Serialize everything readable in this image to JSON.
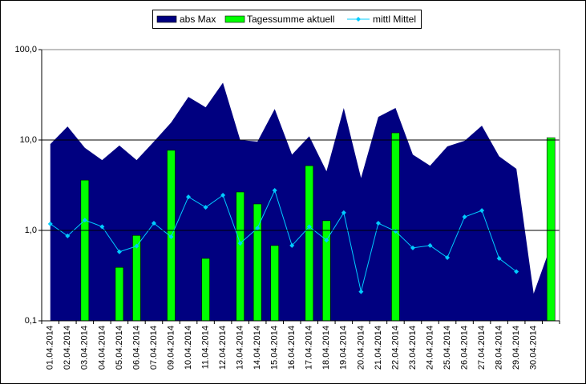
{
  "chart_data": {
    "type": "combo",
    "log_scale": true,
    "grid": true,
    "legend": "top",
    "categories": [
      "01.04.2014",
      "02.04.2014",
      "03.04.2014",
      "04.04.2014",
      "05.04.2014",
      "06.04.2014",
      "07.04.2014",
      "09.04.2014",
      "10.04.2014",
      "11.04.2014",
      "12.04.2014",
      "13.04.2014",
      "14.04.2014",
      "15.04.2014",
      "16.04.2014",
      "17.04.2014",
      "18.04.2014",
      "19.04.2014",
      "20.04.2014",
      "21.04.2014",
      "22.04.2014",
      "23.04.2014",
      "24.04.2014",
      "25.04.2014",
      "26.04.2014",
      "27.04.2014",
      "28.04.2014",
      "29.04.2014",
      "30.04.2014",
      null
    ],
    "series": [
      {
        "name": "abs Max",
        "type": "area",
        "color": "#000080",
        "values": [
          9.0,
          14.1,
          8.2,
          6.0,
          8.7,
          6.0,
          9.6,
          15.6,
          30,
          23,
          43,
          10,
          9.6,
          22,
          6.9,
          11,
          4.5,
          22.6,
          3.8,
          18,
          22.6,
          6.9,
          5.2,
          8.5,
          9.8,
          14.4,
          6.6,
          4.8,
          0.2,
          0.68
        ]
      },
      {
        "name": "Tagessumme aktuell",
        "type": "bar",
        "color": "#00ff00",
        "values": [
          null,
          null,
          3.6,
          null,
          0.39,
          0.88,
          null,
          7.7,
          null,
          0.49,
          null,
          2.66,
          1.96,
          0.68,
          null,
          5.2,
          1.28,
          null,
          null,
          null,
          12,
          null,
          null,
          null,
          null,
          null,
          null,
          null,
          null,
          10.6
        ]
      },
      {
        "name": "mittl Mittel",
        "type": "line",
        "color": "#00ccff",
        "values": [
          1.18,
          0.87,
          1.3,
          1.1,
          0.58,
          0.67,
          1.2,
          0.85,
          2.35,
          1.8,
          2.45,
          0.72,
          1.06,
          2.77,
          0.68,
          1.1,
          0.78,
          1.57,
          0.21,
          1.2,
          0.98,
          0.64,
          0.68,
          0.5,
          1.41,
          1.66,
          0.49,
          0.35,
          null,
          null
        ]
      }
    ],
    "ylim": [
      0.1,
      100
    ],
    "yticks": [
      {
        "value": 0.1,
        "label": "0,1"
      },
      {
        "value": 1,
        "label": "1,0"
      },
      {
        "value": 10,
        "label": "10,0"
      },
      {
        "value": 100,
        "label": "100,0"
      }
    ]
  }
}
